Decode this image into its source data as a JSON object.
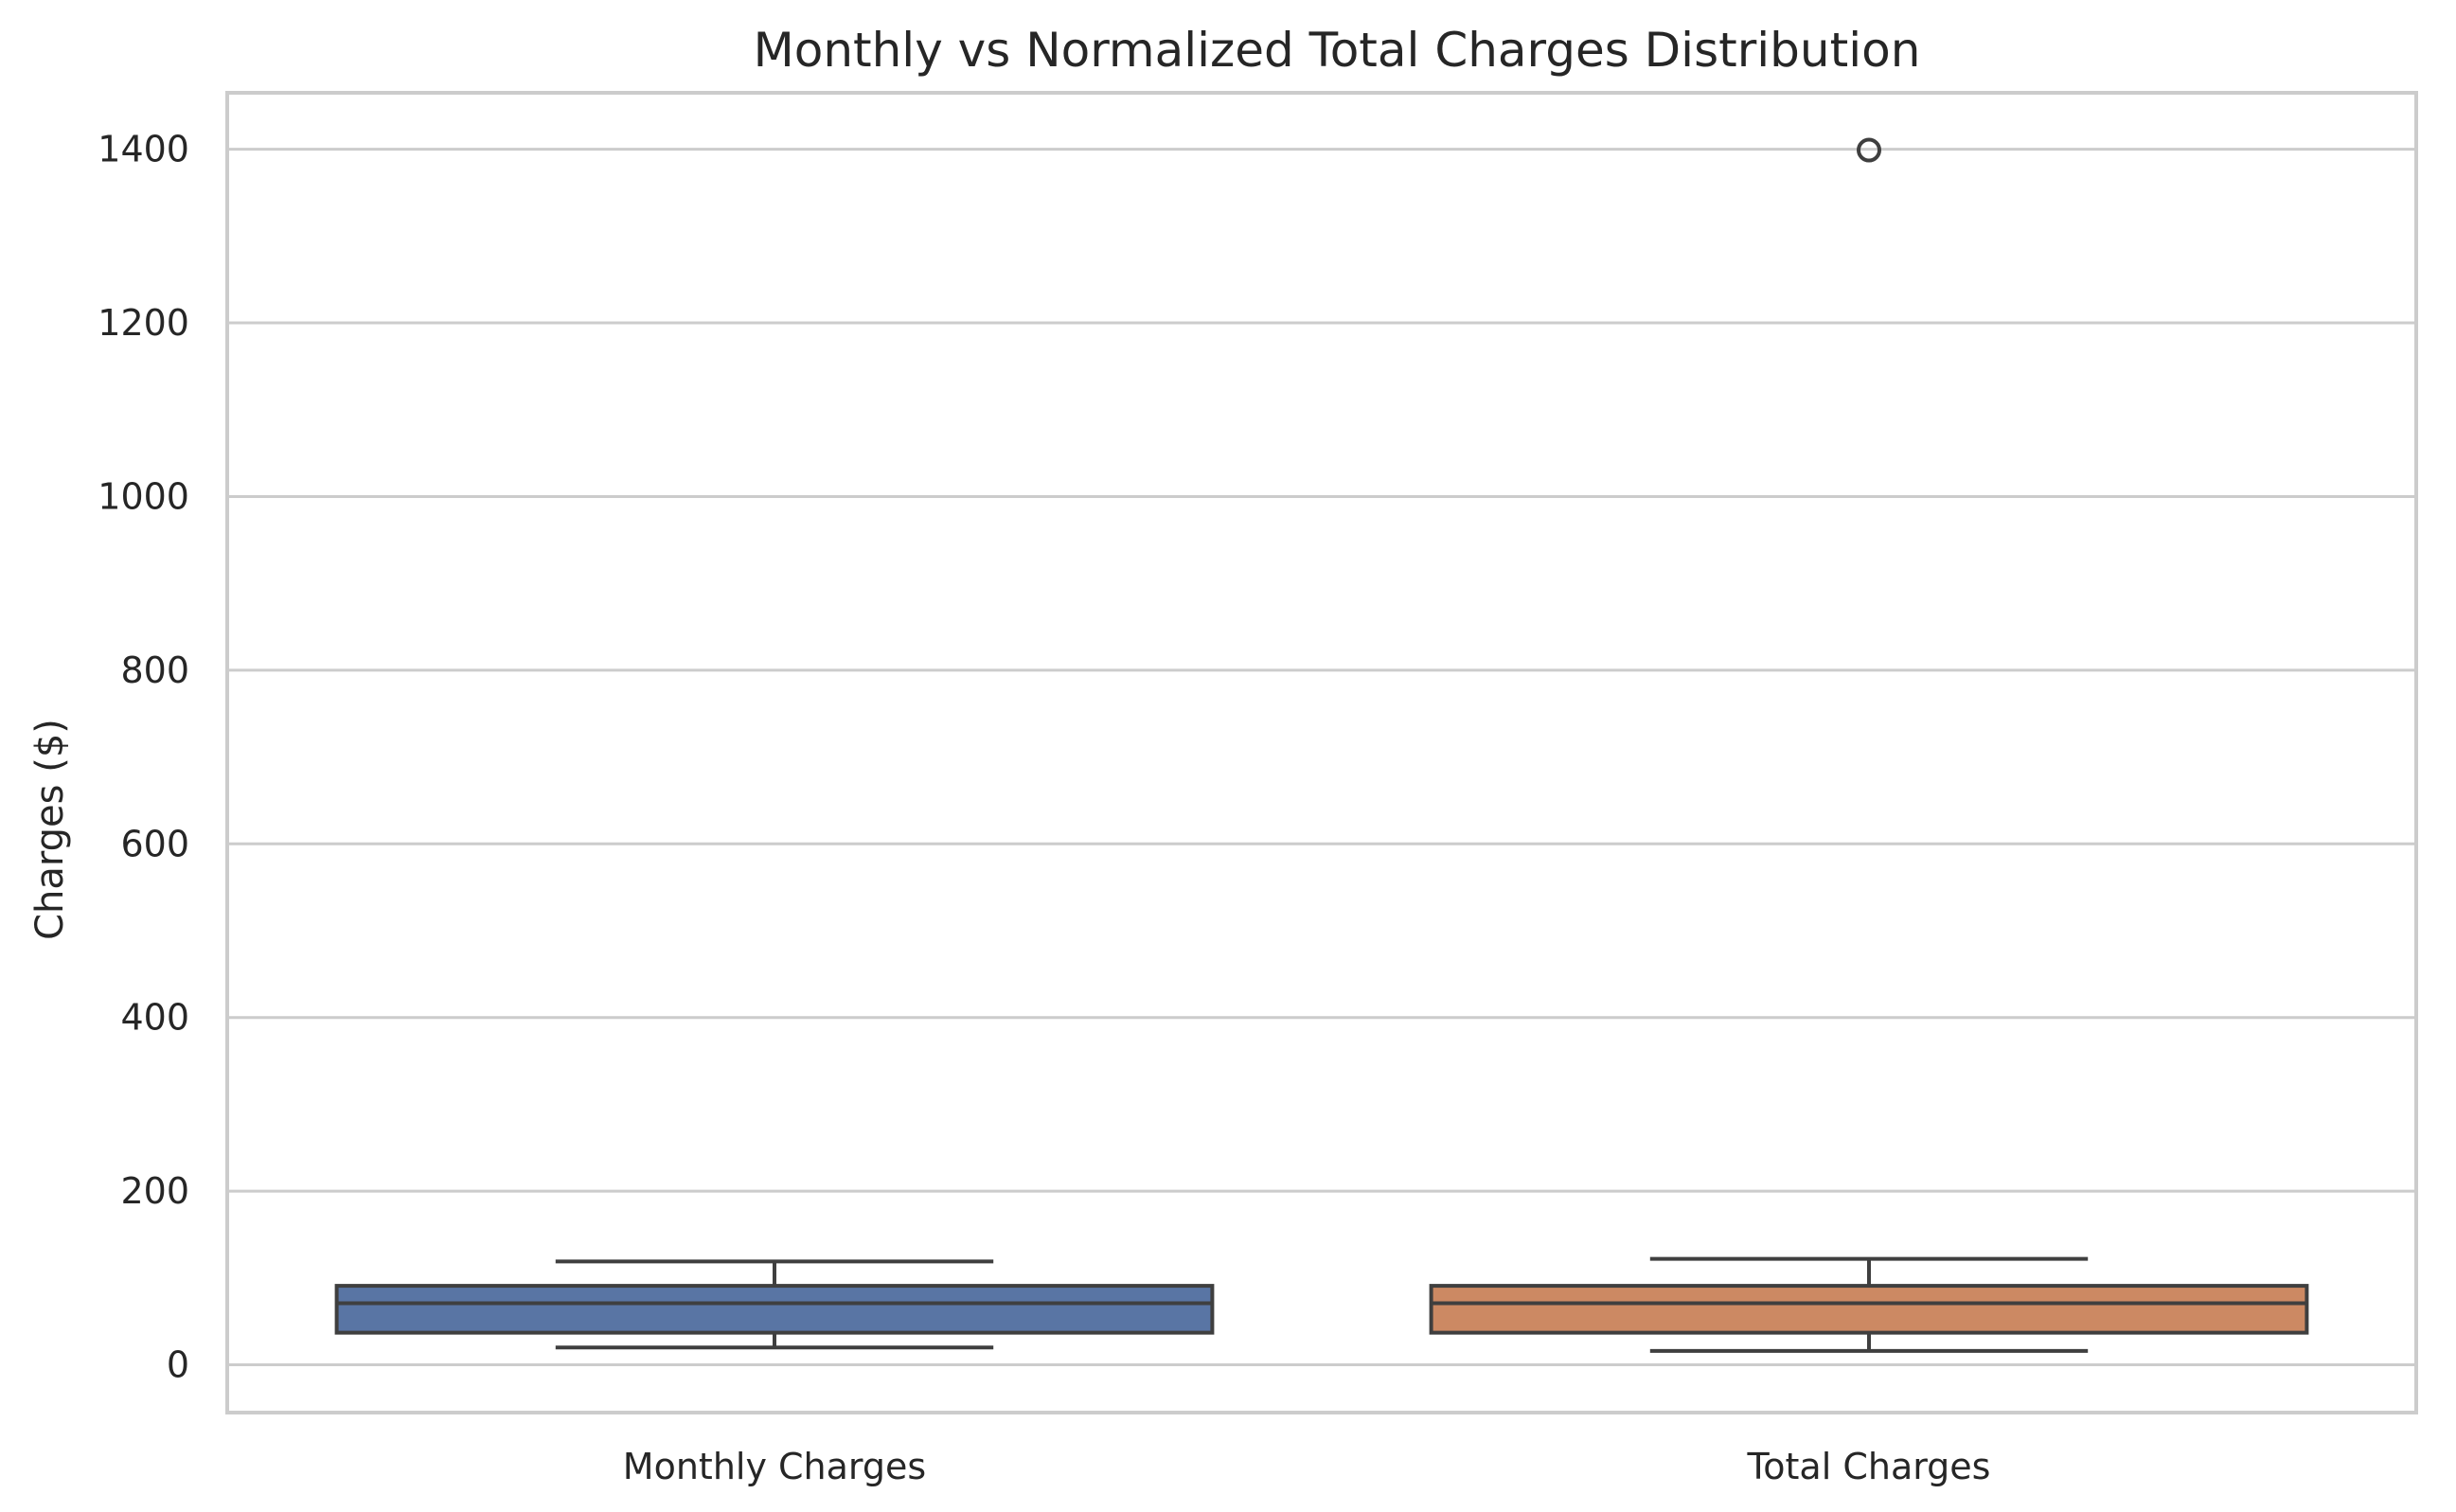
{
  "chart_data": {
    "type": "box",
    "title": "Monthly vs Normalized Total Charges Distribution",
    "xlabel": "",
    "ylabel": "Charges ($)",
    "ylim": [
      -55,
      1465
    ],
    "yticks": [
      0,
      200,
      400,
      600,
      800,
      1000,
      1200,
      1400
    ],
    "grid": true,
    "categories": [
      "Monthly Charges",
      "Total Charges"
    ],
    "series": [
      {
        "category": "Monthly Charges",
        "whisker_low": 20,
        "q1": 37,
        "median": 71,
        "q3": 91,
        "whisker_high": 119,
        "outliers": [],
        "color": "#5975a4"
      },
      {
        "category": "Total Charges",
        "whisker_low": 16,
        "q1": 37,
        "median": 71,
        "q3": 91,
        "whisker_high": 122,
        "outliers": [
          1399
        ],
        "color": "#cc8963"
      }
    ]
  }
}
